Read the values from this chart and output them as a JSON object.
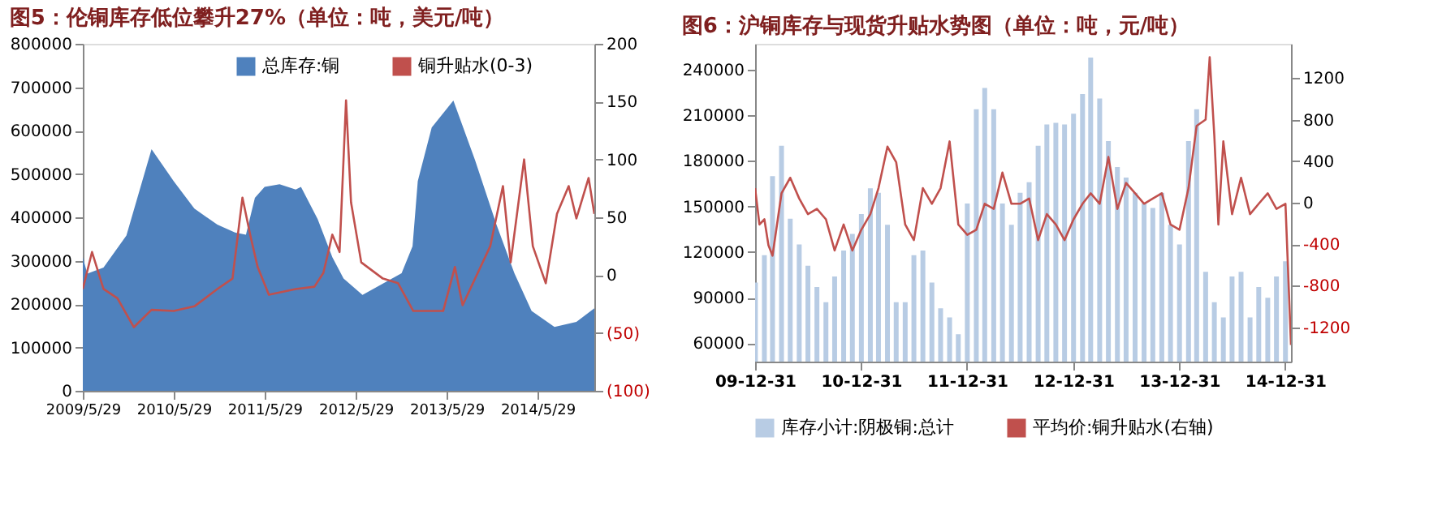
{
  "chart_data": [
    {
      "type": "area",
      "title": "图5：伦铜库存低位攀升27%（单位：吨，美元/吨）",
      "xlim": [
        "2009-05-29",
        "2015-01-12"
      ],
      "xticks": [
        {
          "value": "2009-05-29",
          "label": "2009/5/29"
        },
        {
          "value": "2010-05-29",
          "label": "2010/5/29"
        },
        {
          "value": "2011-05-29",
          "label": "2011/5/29"
        },
        {
          "value": "2012-05-29",
          "label": "2012/5/29"
        },
        {
          "value": "2013-05-29",
          "label": "2013/5/29"
        },
        {
          "value": "2014-05-29",
          "label": "2014/5/29"
        }
      ],
      "ylim": [
        0,
        800000
      ],
      "yticks": [
        0,
        100000,
        200000,
        300000,
        400000,
        500000,
        600000,
        700000,
        800000
      ],
      "y2lim": [
        -100,
        200
      ],
      "y2ticks": [
        {
          "value": -100,
          "label": "(100)"
        },
        {
          "value": -50,
          "label": "(50)"
        },
        0,
        50,
        100,
        150,
        200
      ],
      "legend": "top",
      "series": [
        {
          "name": "总库存:铜",
          "type": "area",
          "color": "#4f81bd",
          "x": [
            "2009-05-29",
            "2009-06-16",
            "2009-08-20",
            "2009-11-20",
            "2010-03-01",
            "2010-05-29",
            "2010-08-20",
            "2010-11-20",
            "2011-01-30",
            "2011-03-15",
            "2011-04-20",
            "2011-05-29",
            "2011-07-28",
            "2011-10-01",
            "2011-10-22",
            "2011-12-28",
            "2012-02-25",
            "2012-04-10",
            "2012-06-25",
            "2012-11-29",
            "2013-01-12",
            "2013-02-02",
            "2013-03-30",
            "2013-06-25",
            "2013-09-20",
            "2013-12-15",
            "2014-02-25",
            "2014-05-05",
            "2014-08-05",
            "2014-11-01",
            "2015-01-12"
          ],
          "values": [
            308000,
            270000,
            284000,
            358000,
            557000,
            483000,
            420000,
            383000,
            365000,
            360000,
            445000,
            470000,
            476000,
            464000,
            470000,
            396000,
            308000,
            259000,
            221000,
            271000,
            333000,
            483000,
            607000,
            669000,
            532000,
            383000,
            271000,
            184000,
            147000,
            159000,
            190000
          ]
        },
        {
          "name": "铜升贴水(0-3)",
          "type": "line",
          "axis": "y2",
          "color": "#c0504d",
          "x": [
            "2009-05-29",
            "2009-07-05",
            "2009-08-20",
            "2009-10-15",
            "2009-12-20",
            "2010-03-01",
            "2010-05-29",
            "2010-08-20",
            "2010-11-20",
            "2011-01-20",
            "2011-03-01",
            "2011-04-01",
            "2011-05-01",
            "2011-06-15",
            "2011-10-01",
            "2011-12-15",
            "2012-01-20",
            "2012-02-25",
            "2012-03-25",
            "2012-04-20",
            "2012-05-10",
            "2012-06-20",
            "2012-09-15",
            "2012-11-15",
            "2013-01-15",
            "2013-05-15",
            "2013-07-01",
            "2013-08-01",
            "2013-10-01",
            "2013-11-20",
            "2014-01-10",
            "2014-02-10",
            "2014-04-05",
            "2014-05-10",
            "2014-07-01",
            "2014-08-15",
            "2014-10-01",
            "2014-11-01",
            "2014-12-20",
            "2015-01-12"
          ],
          "values": [
            -12,
            20,
            -12,
            -20,
            -45,
            -30,
            -31,
            -27,
            -12,
            -3,
            67,
            35,
            7,
            -17,
            -12,
            -10,
            2,
            35,
            20,
            151,
            63,
            11,
            -3,
            -7,
            -31,
            -31,
            7,
            -26,
            2,
            25,
            77,
            11,
            100,
            25,
            -7,
            53,
            77,
            49,
            84,
            53
          ]
        }
      ]
    },
    {
      "type": "bar",
      "title": "图6：沪铜库存与现货升贴水势图（单位：吨，元/吨）",
      "xlim": [
        "2009-12-31",
        "2015-01-20"
      ],
      "xticks": [
        {
          "value": "2009-12-31",
          "label": "09-12-31"
        },
        {
          "value": "2010-12-31",
          "label": "10-12-31"
        },
        {
          "value": "2011-12-31",
          "label": "11-12-31"
        },
        {
          "value": "2012-12-31",
          "label": "12-12-31"
        },
        {
          "value": "2013-12-31",
          "label": "13-12-31"
        },
        {
          "value": "2014-12-31",
          "label": "14-12-31"
        }
      ],
      "ylim": [
        48000,
        257000
      ],
      "yticks": [
        60000,
        90000,
        120000,
        150000,
        180000,
        210000,
        240000
      ],
      "y2lim": [
        -1530,
        1530
      ],
      "y2ticks": [
        -1200,
        -800,
        -400,
        0,
        400,
        800,
        1200
      ],
      "legend": "bottom",
      "series": [
        {
          "name": "库存小计:阴极铜:总计",
          "type": "bar",
          "color": "#b8cce4",
          "x": [
            "2010-01",
            "2010-02",
            "2010-03",
            "2010-04",
            "2010-05",
            "2010-06",
            "2010-07",
            "2010-08",
            "2010-09",
            "2010-10",
            "2010-11",
            "2010-12",
            "2011-01",
            "2011-02",
            "2011-03",
            "2011-04",
            "2011-05",
            "2011-06",
            "2011-07",
            "2011-08",
            "2011-09",
            "2011-10",
            "2011-11",
            "2011-12",
            "2012-01",
            "2012-02",
            "2012-03",
            "2012-04",
            "2012-05",
            "2012-06",
            "2012-07",
            "2012-08",
            "2012-09",
            "2012-10",
            "2012-11",
            "2012-12",
            "2013-01",
            "2013-02",
            "2013-03",
            "2013-04",
            "2013-05",
            "2013-06",
            "2013-07",
            "2013-08",
            "2013-09",
            "2013-10",
            "2013-11",
            "2013-12",
            "2014-01",
            "2014-02",
            "2014-03",
            "2014-04",
            "2014-05",
            "2014-06",
            "2014-07",
            "2014-08",
            "2014-09",
            "2014-10",
            "2014-11",
            "2014-12",
            "2015-01"
          ],
          "values": [
            100000,
            118000,
            170000,
            190000,
            142000,
            125000,
            111000,
            97000,
            87000,
            104000,
            121000,
            132000,
            145000,
            162000,
            159000,
            138000,
            87000,
            87000,
            118000,
            121000,
            100000,
            83000,
            77000,
            66000,
            152000,
            214000,
            228000,
            214000,
            152000,
            138000,
            159000,
            166000,
            190000,
            204000,
            205000,
            204000,
            211000,
            224000,
            248000,
            221000,
            193000,
            176000,
            169000,
            159000,
            152000,
            149000,
            159000,
            138000,
            125000,
            193000,
            214000,
            107000,
            87000,
            77000,
            104000,
            107000,
            77000,
            97000,
            90000,
            104000,
            114000
          ]
        },
        {
          "name": "平均价:铜升贴水(右轴)",
          "type": "line",
          "axis": "y2",
          "color": "#c0504d",
          "x": [
            "2009-12-31",
            "2010-01-15",
            "2010-02-01",
            "2010-02-15",
            "2010-03-01",
            "2010-04-01",
            "2010-05-01",
            "2010-06-01",
            "2010-07-01",
            "2010-08-01",
            "2010-09-01",
            "2010-10-01",
            "2010-11-01",
            "2010-12-01",
            "2011-01-01",
            "2011-02-01",
            "2011-03-01",
            "2011-04-01",
            "2011-05-01",
            "2011-06-01",
            "2011-07-01",
            "2011-08-01",
            "2011-09-01",
            "2011-10-01",
            "2011-11-01",
            "2011-12-01",
            "2012-01-01",
            "2012-02-01",
            "2012-03-01",
            "2012-04-01",
            "2012-05-01",
            "2012-06-01",
            "2012-07-01",
            "2012-08-01",
            "2012-09-01",
            "2012-10-01",
            "2012-11-01",
            "2012-12-01",
            "2013-01-01",
            "2013-02-01",
            "2013-03-01",
            "2013-04-01",
            "2013-05-01",
            "2013-06-01",
            "2013-07-01",
            "2013-08-01",
            "2013-09-01",
            "2013-10-01",
            "2013-11-01",
            "2013-12-01",
            "2014-01-01",
            "2014-02-01",
            "2014-03-01",
            "2014-04-01",
            "2014-04-15",
            "2014-05-01",
            "2014-05-15",
            "2014-06-01",
            "2014-07-01",
            "2014-08-01",
            "2014-09-01",
            "2014-10-01",
            "2014-11-01",
            "2014-12-01",
            "2015-01-01",
            "2015-01-20"
          ],
          "values": [
            140,
            -210,
            -160,
            -410,
            -510,
            90,
            240,
            40,
            -110,
            -60,
            -160,
            -460,
            -210,
            -460,
            -260,
            -110,
            140,
            540,
            390,
            -210,
            -360,
            140,
            -10,
            140,
            590,
            -210,
            -310,
            -260,
            -10,
            -60,
            290,
            -10,
            -10,
            40,
            -360,
            -110,
            -210,
            -360,
            -160,
            -10,
            90,
            -10,
            440,
            -60,
            190,
            90,
            -10,
            40,
            90,
            -210,
            -260,
            140,
            740,
            800,
            1400,
            640,
            -210,
            590,
            -110,
            240,
            -110,
            -10,
            90,
            -60,
            -10,
            -1370
          ]
        }
      ]
    }
  ]
}
